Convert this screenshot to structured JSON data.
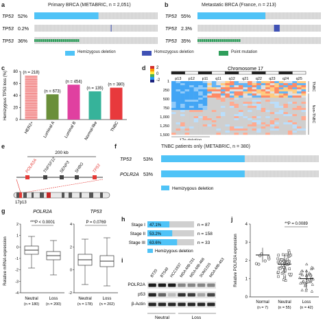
{
  "panel_a": {
    "letter": "a",
    "title": "Primary BRCA (METABRIC, n = 2,051)",
    "rows": [
      {
        "gene": "TP53",
        "pct": "52%",
        "fraction": 0.52,
        "type": "hemi"
      },
      {
        "gene": "TP53",
        "pct": "0.2%",
        "fraction": 0.002,
        "type": "homo"
      },
      {
        "gene": "TP53",
        "pct": "36%",
        "fraction": 0.36,
        "type": "point"
      }
    ]
  },
  "panel_b": {
    "letter": "b",
    "title": "Metastatic BRCA (France, n = 213)",
    "rows": [
      {
        "gene": "TP53",
        "pct": "55%",
        "fraction": 0.55,
        "type": "hemi"
      },
      {
        "gene": "TP53",
        "pct": "2.3%",
        "fraction": 0.023,
        "type": "homo"
      },
      {
        "gene": "TP53",
        "pct": "35%",
        "fraction": 0.35,
        "type": "point"
      }
    ]
  },
  "legend_ab": {
    "hemi": "Hemizygous deletion",
    "homo": "Homozygous deletion",
    "point": "Point mutation"
  },
  "colors": {
    "hemi": "#4fc3f7",
    "homo": "#3f51b5",
    "point": "#2e9e5b",
    "bg": "#d0d0d0",
    "her2": "#f28a8a",
    "lumA": "#6a8f3a",
    "lumB": "#e040a0",
    "normal": "#36b39a",
    "tnbc": "#e8393c"
  },
  "panel_c": {
    "letter": "c",
    "chart_data": {
      "type": "bar",
      "ylabel": "Hemizygous TP53 loss (%)",
      "categories": [
        "HER2+",
        "Luminal A",
        "Luminal B",
        "Normal-like",
        "TNBC"
      ],
      "n_labels": [
        "(n = 218)",
        "(n = 673)",
        "(n = 454)",
        "(n = 135)",
        "(n = 380)"
      ],
      "values": [
        73,
        42,
        58,
        47,
        53
      ],
      "ylim": [
        0,
        80
      ],
      "yticks": [
        0,
        20,
        40,
        60,
        80
      ]
    }
  },
  "panel_d": {
    "letter": "d",
    "title": "Chromosome 17",
    "bands": [
      "p13",
      "p12",
      "p11",
      "q11",
      "q12",
      "q21",
      "q22",
      "q23",
      "q24",
      "q25"
    ],
    "yticks": [
      "1",
      "500",
      "1,000",
      "1,500"
    ],
    "yticks_all": [
      "500",
      "750",
      "1,000",
      "1,250",
      "1,500"
    ],
    "scale": [
      "2",
      "0",
      "-2"
    ],
    "right_labels": [
      "TNBC",
      "Non-TNBC"
    ],
    "bottom_label": "17p deletion"
  },
  "panel_e": {
    "letter": "e",
    "scale": "200 kb",
    "genes": [
      "POLR2A",
      "TNFSF12",
      "SENP3",
      "SHBG",
      "TP53"
    ],
    "band": "17p13"
  },
  "panel_f": {
    "letter": "f",
    "title": "TNBC patients only (METABRIC, n = 380)",
    "rows": [
      {
        "gene": "TP53",
        "pct": "53%",
        "fraction": 0.53
      },
      {
        "gene": "POLR2A",
        "pct": "53%",
        "fraction": 0.53
      }
    ],
    "legend": "Hemizygous deletion"
  },
  "panel_g": {
    "letter": "g",
    "ylabel": "Relative mRNA expression",
    "plots": [
      {
        "gene": "POLR2A",
        "pval": "***P < 0.0001",
        "groups": [
          "Neutral",
          "Loss"
        ],
        "ns": [
          "(n = 180)",
          "(n = 200)"
        ],
        "yticks": [
          "2",
          "1",
          "0",
          "-1",
          "-2",
          "-3",
          "-4"
        ]
      },
      {
        "gene": "TP53",
        "pval": "P = 0.0769",
        "groups": [
          "Neutral",
          "Loss"
        ],
        "ns": [
          "(n = 178)",
          "(n = 202)"
        ],
        "yticks": [
          "4",
          "2",
          "0",
          "-2"
        ]
      }
    ]
  },
  "panel_h": {
    "letter": "h",
    "chart_data": {
      "type": "bar",
      "categories": [
        "Stage I",
        "Stage II",
        "Stage III"
      ],
      "values": [
        47.1,
        53.2,
        63.6
      ],
      "labels": [
        "47.1%",
        "53.2%",
        "63.6%"
      ],
      "n_labels": [
        "n = 87",
        "n = 158",
        "n = 33"
      ],
      "legend": "Hemizygous deletion",
      "ylim": [
        0,
        100
      ]
    }
  },
  "panel_i": {
    "letter": "i",
    "lines": [
      "BT20",
      "BT549",
      "HCC1937",
      "MDA-MB-231",
      "MDA-MB-468",
      "SUM1315",
      "MDA-MB-453"
    ],
    "proteins": [
      "POLR2A",
      "p53",
      "β-Actin"
    ],
    "groups": [
      "Neutral",
      "Loss"
    ]
  },
  "panel_j": {
    "letter": "j",
    "chart_data": {
      "type": "scatter",
      "ylabel": "Relative POLR2A expression",
      "categories": [
        "Normal",
        "Neutral",
        "Loss"
      ],
      "n_labels": [
        "(n = 7)",
        "(n = 55)",
        "(n = 42)"
      ],
      "pval": "**P = 0.0089",
      "ylim": [
        0,
        4
      ],
      "yticks": [
        0,
        1,
        2,
        3,
        4
      ]
    }
  }
}
